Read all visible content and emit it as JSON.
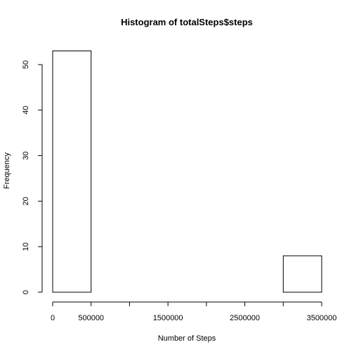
{
  "chart_data": {
    "type": "bar",
    "title": "Histogram of totalSteps$steps",
    "xlabel": "Number of Steps",
    "ylabel": "Frequency",
    "bins": [
      {
        "start": 0,
        "end": 500000,
        "count": 53
      },
      {
        "start": 500000,
        "end": 1000000,
        "count": 0
      },
      {
        "start": 1000000,
        "end": 1500000,
        "count": 0
      },
      {
        "start": 1500000,
        "end": 2000000,
        "count": 0
      },
      {
        "start": 2000000,
        "end": 2500000,
        "count": 0
      },
      {
        "start": 2500000,
        "end": 3000000,
        "count": 0
      },
      {
        "start": 3000000,
        "end": 3500000,
        "count": 8
      }
    ],
    "xlim": [
      0,
      3500000
    ],
    "ylim": [
      0,
      53
    ],
    "x_ticks": [
      0,
      500000,
      1000000,
      1500000,
      2000000,
      2500000,
      3000000,
      3500000
    ],
    "x_tick_labels": [
      "0",
      "500000",
      "",
      "1500000",
      "",
      "2500000",
      "",
      "3500000"
    ],
    "y_ticks": [
      0,
      10,
      20,
      30,
      40,
      50
    ],
    "y_tick_labels": [
      "0",
      "10",
      "20",
      "30",
      "40",
      "50"
    ],
    "grid": false,
    "legend": "none"
  }
}
